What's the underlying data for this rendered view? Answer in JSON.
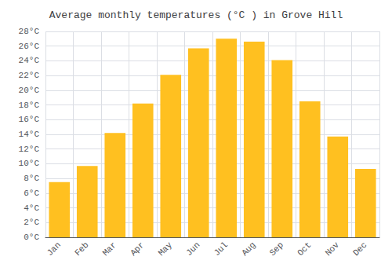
{
  "chart_data": {
    "type": "bar",
    "title": "Average monthly temperatures (°C ) in Grove Hill",
    "categories": [
      "Jan",
      "Feb",
      "Mar",
      "Apr",
      "May",
      "Jun",
      "Jul",
      "Aug",
      "Sep",
      "Oct",
      "Nov",
      "Dec"
    ],
    "values": [
      7.5,
      9.7,
      14.2,
      18.2,
      22.1,
      25.7,
      27.0,
      26.6,
      24.1,
      18.5,
      13.7,
      9.3
    ],
    "color": "#FFC020",
    "ylim": [
      0,
      28
    ],
    "yticks": [
      {
        "value": 0,
        "label": "0°C"
      },
      {
        "value": 2,
        "label": "2°C"
      },
      {
        "value": 4,
        "label": "4°C"
      },
      {
        "value": 6,
        "label": "6°C"
      },
      {
        "value": 8,
        "label": "8°C"
      },
      {
        "value": 10,
        "label": "10°C"
      },
      {
        "value": 12,
        "label": "12°C"
      },
      {
        "value": 14,
        "label": "14°C"
      },
      {
        "value": 16,
        "label": "16°C"
      },
      {
        "value": 18,
        "label": "18°C"
      },
      {
        "value": 20,
        "label": "20°C"
      },
      {
        "value": 22,
        "label": "22°C"
      },
      {
        "value": 24,
        "label": "24°C"
      },
      {
        "value": 26,
        "label": "26°C"
      },
      {
        "value": 28,
        "label": "28°C"
      }
    ],
    "grid": true
  }
}
